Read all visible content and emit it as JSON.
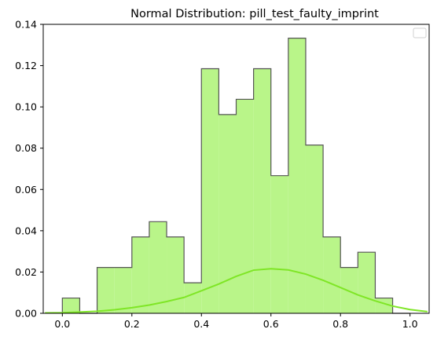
{
  "chart_data": {
    "type": "histogram",
    "title": "Normal Distribution: pill_test_faulty_imprint",
    "xlabel": "",
    "ylabel": "",
    "xlim": [
      -0.055,
      1.055
    ],
    "ylim": [
      0,
      0.14
    ],
    "x_ticks": [
      "0.0",
      "0.2",
      "0.4",
      "0.6",
      "0.8",
      "1.0"
    ],
    "y_ticks": [
      "0.00",
      "0.02",
      "0.04",
      "0.06",
      "0.08",
      "0.10",
      "0.12",
      "0.14"
    ],
    "grid": false,
    "legend": {
      "placement": "top-right",
      "entries": []
    },
    "colors": {
      "bar_fill": "#b9f589",
      "bar_edge": "#555555",
      "curve": "#7fe626"
    },
    "series": [
      {
        "kind": "histogram",
        "bin_edges": [
          0.0,
          0.05,
          0.1,
          0.15,
          0.2,
          0.25,
          0.3,
          0.35,
          0.4,
          0.45,
          0.5,
          0.55,
          0.6,
          0.65,
          0.7,
          0.75,
          0.8,
          0.85,
          0.9,
          0.95,
          1.0
        ],
        "values": [
          0.0074,
          0.0,
          0.0222,
          0.0222,
          0.037,
          0.0444,
          0.037,
          0.0148,
          0.1185,
          0.0963,
          0.1037,
          0.1185,
          0.0667,
          0.1333,
          0.0815,
          0.037,
          0.0222,
          0.0296,
          0.0074,
          0.0
        ]
      },
      {
        "kind": "line",
        "x": [
          -0.05,
          0.0,
          0.05,
          0.1,
          0.15,
          0.2,
          0.25,
          0.3,
          0.35,
          0.4,
          0.45,
          0.5,
          0.55,
          0.6,
          0.65,
          0.7,
          0.75,
          0.8,
          0.85,
          0.9,
          0.95,
          1.0,
          1.05
        ],
        "y": [
          0.0002,
          0.0003,
          0.0006,
          0.001,
          0.0017,
          0.0027,
          0.004,
          0.0057,
          0.0077,
          0.0109,
          0.0142,
          0.0179,
          0.0209,
          0.0216,
          0.021,
          0.019,
          0.016,
          0.0125,
          0.0089,
          0.006,
          0.0035,
          0.0018,
          0.0008
        ]
      }
    ]
  }
}
